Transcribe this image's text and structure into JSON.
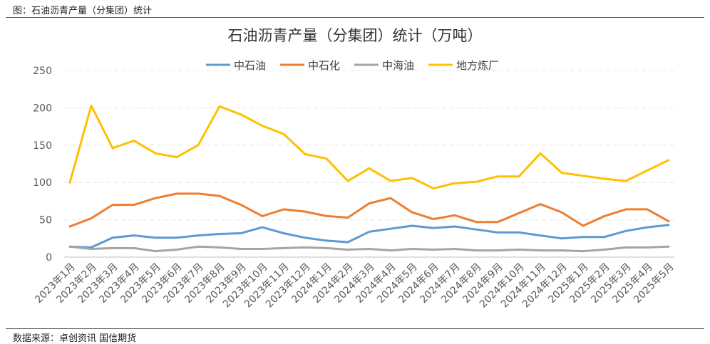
{
  "figure_caption": "图：石油沥青产量（分集团）统计",
  "source_note": "数据来源：卓创资讯  国信期货",
  "chart_data": {
    "type": "line",
    "title": "石油沥青产量（分集团）统计（万吨）",
    "xlabel": "",
    "ylabel": "",
    "ylim": [
      0,
      250
    ],
    "yticks": [
      0,
      50,
      100,
      150,
      200,
      250
    ],
    "grid": true,
    "legend_position": "top",
    "categories": [
      "2023年1月",
      "2023年2月",
      "2023年3月",
      "2023年4月",
      "2023年5月",
      "2023年6月",
      "2023年7月",
      "2023年8月",
      "2023年9月",
      "2023年10月",
      "2023年11月",
      "2023年12月",
      "2024年1月",
      "2024年2月",
      "2024年3月",
      "2024年4月",
      "2024年5月",
      "2024年6月",
      "2024年7月",
      "2024年8月",
      "2024年9月",
      "2024年10月",
      "2024年11月",
      "2024年12月",
      "2025年1月",
      "2025年2月",
      "2025年3月",
      "2025年4月",
      "2025年5月"
    ],
    "series": [
      {
        "name": "中石油",
        "color": "#5b9bd5",
        "values": [
          14,
          13,
          26,
          29,
          26,
          26,
          29,
          31,
          32,
          40,
          32,
          26,
          22,
          20,
          34,
          38,
          42,
          39,
          41,
          37,
          33,
          33,
          29,
          25,
          27,
          27,
          35,
          40,
          43
        ]
      },
      {
        "name": "中石化",
        "color": "#ed7d31",
        "values": [
          41,
          52,
          70,
          70,
          79,
          85,
          85,
          82,
          70,
          55,
          64,
          61,
          55,
          53,
          72,
          79,
          60,
          51,
          56,
          47,
          47,
          59,
          71,
          60,
          42,
          55,
          64,
          64,
          48
        ]
      },
      {
        "name": "中海油",
        "color": "#a5a5a5",
        "values": [
          14,
          11,
          12,
          12,
          8,
          10,
          14,
          13,
          11,
          11,
          12,
          13,
          12,
          10,
          11,
          9,
          11,
          10,
          11,
          9,
          9,
          10,
          9,
          9,
          8,
          10,
          13,
          13,
          14
        ]
      },
      {
        "name": "地方炼厂",
        "color": "#ffc000",
        "values": [
          100,
          203,
          146,
          156,
          139,
          134,
          150,
          202,
          191,
          176,
          165,
          138,
          132,
          102,
          119,
          102,
          106,
          92,
          99,
          101,
          108,
          108,
          139,
          113,
          109,
          105,
          102,
          116,
          130
        ]
      }
    ]
  }
}
